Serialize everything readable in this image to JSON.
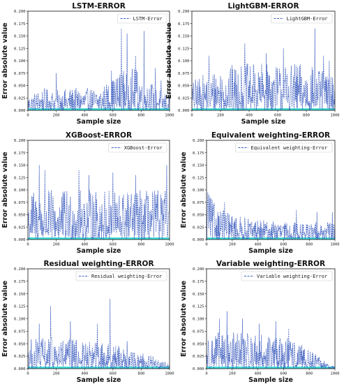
{
  "chart_data": [
    {
      "type": "line",
      "title": "LSTM-ERROR",
      "xlabel": "Sample size",
      "ylabel": "Error absolute value",
      "xlim": [
        0,
        1000
      ],
      "ylim": [
        0,
        0.2
      ],
      "xticks": [
        "0",
        "200",
        "400",
        "600",
        "800",
        "1000"
      ],
      "yticks": [
        "0.000",
        "0.025",
        "0.050",
        "0.075",
        "0.100",
        "0.125",
        "0.150",
        "0.175",
        "0.200"
      ],
      "legend": "top-right",
      "series": [
        {
          "name": "LSTM-Error",
          "style": "dashed",
          "color": "#3f5fbf",
          "profile": [
            [
              0,
              0.03
            ],
            [
              100,
              0.045
            ],
            [
              200,
              0.04
            ],
            [
              300,
              0.045
            ],
            [
              400,
              0.045
            ],
            [
              500,
              0.045
            ],
            [
              600,
              0.065
            ],
            [
              700,
              0.09
            ],
            [
              800,
              0.08
            ],
            [
              900,
              0.05
            ],
            [
              1000,
              0.03
            ]
          ],
          "peaks": [
            [
              200,
              0.075
            ],
            [
              590,
              0.08
            ],
            [
              660,
              0.165
            ],
            [
              700,
              0.155
            ],
            [
              760,
              0.11
            ],
            [
              820,
              0.16
            ],
            [
              900,
              0.085
            ],
            [
              940,
              0.06
            ]
          ]
        }
      ]
    },
    {
      "type": "line",
      "title": "LightGBM-ERROR",
      "xlabel": "Sample size",
      "ylabel": "Error absolute value",
      "xlim": [
        0,
        1000
      ],
      "ylim": [
        0,
        0.2
      ],
      "xticks": [
        "0",
        "200",
        "400",
        "600",
        "800",
        "1000"
      ],
      "yticks": [
        "0.000",
        "0.025",
        "0.050",
        "0.075",
        "0.100",
        "0.125",
        "0.150",
        "0.175",
        "0.200"
      ],
      "legend": "top-right",
      "series": [
        {
          "name": "LightGBM-Error",
          "style": "dashed",
          "color": "#3f5fbf",
          "profile": [
            [
              0,
              0.06
            ],
            [
              200,
              0.09
            ],
            [
              400,
              0.095
            ],
            [
              600,
              0.095
            ],
            [
              800,
              0.095
            ],
            [
              1000,
              0.07
            ]
          ],
          "peaks": [
            [
              120,
              0.11
            ],
            [
              370,
              0.135
            ],
            [
              520,
              0.115
            ],
            [
              640,
              0.125
            ],
            [
              860,
              0.165
            ],
            [
              920,
              0.11
            ],
            [
              960,
              0.1
            ]
          ]
        }
      ]
    },
    {
      "type": "line",
      "title": "XGBoost-ERROR",
      "xlabel": "Sample size",
      "ylabel": "Error absolute value",
      "xlim": [
        0,
        1000
      ],
      "ylim": [
        0,
        0.2
      ],
      "xticks": [
        "0",
        "200",
        "400",
        "600",
        "800",
        "1000"
      ],
      "yticks": [
        "0.000",
        "0.025",
        "0.050",
        "0.075",
        "0.100",
        "0.125",
        "0.150",
        "0.175",
        "0.200"
      ],
      "legend": "top-right",
      "series": [
        {
          "name": "XGBoost-Error",
          "style": "dashed",
          "color": "#3f5fbf",
          "profile": [
            [
              0,
              0.1
            ],
            [
              200,
              0.1
            ],
            [
              400,
              0.1
            ],
            [
              600,
              0.1
            ],
            [
              800,
              0.1
            ],
            [
              1000,
              0.1
            ]
          ],
          "peaks": [
            [
              80,
              0.15
            ],
            [
              120,
              0.14
            ],
            [
              360,
              0.14
            ],
            [
              430,
              0.13
            ],
            [
              600,
              0.135
            ],
            [
              760,
              0.13
            ],
            [
              980,
              0.15
            ]
          ]
        }
      ]
    },
    {
      "type": "line",
      "title": "Equivalent weighting-ERROR",
      "xlabel": "Sample size",
      "ylabel": "Error absolute value",
      "xlim": [
        0,
        1000
      ],
      "ylim": [
        0,
        0.2
      ],
      "xticks": [
        "0",
        "200",
        "400",
        "600",
        "800",
        "1000"
      ],
      "yticks": [
        "0.000",
        "0.025",
        "0.050",
        "0.075",
        "0.100",
        "0.125",
        "0.150",
        "0.175",
        "0.200"
      ],
      "legend": "top-right",
      "series": [
        {
          "name": "Equivalent weighting-Error",
          "style": "dashed",
          "color": "#3f5fbf",
          "profile": [
            [
              0,
              0.095
            ],
            [
              100,
              0.065
            ],
            [
              200,
              0.05
            ],
            [
              400,
              0.04
            ],
            [
              600,
              0.035
            ],
            [
              800,
              0.035
            ],
            [
              1000,
              0.035
            ]
          ],
          "peaks": [
            [
              10,
              0.095
            ],
            [
              20,
              0.09
            ],
            [
              140,
              0.075
            ],
            [
              700,
              0.06
            ],
            [
              860,
              0.055
            ],
            [
              980,
              0.055
            ]
          ]
        }
      ]
    },
    {
      "type": "line",
      "title": "Residual weighting-ERROR",
      "xlabel": "Sample size",
      "ylabel": "Error absolute value",
      "xlim": [
        0,
        1000
      ],
      "ylim": [
        0,
        0.2
      ],
      "xticks": [
        "0",
        "200",
        "400",
        "600",
        "800",
        "1000"
      ],
      "yticks": [
        "0.000",
        "0.025",
        "0.050",
        "0.075",
        "0.100",
        "0.125",
        "0.150",
        "0.175",
        "0.200"
      ],
      "legend": "top-right",
      "series": [
        {
          "name": "Residual weighting-Error",
          "style": "dashed",
          "color": "#3f5fbf",
          "profile": [
            [
              0,
              0.06
            ],
            [
              200,
              0.065
            ],
            [
              400,
              0.055
            ],
            [
              600,
              0.05
            ],
            [
              800,
              0.035
            ],
            [
              900,
              0.025
            ],
            [
              1000,
              0.01
            ]
          ],
          "peaks": [
            [
              80,
              0.09
            ],
            [
              160,
              0.125
            ],
            [
              300,
              0.095
            ],
            [
              490,
              0.09
            ],
            [
              580,
              0.14
            ],
            [
              700,
              0.055
            ]
          ]
        }
      ]
    },
    {
      "type": "line",
      "title": "Variable weighting-ERROR",
      "xlabel": "Sample size",
      "ylabel": "Error absolute value",
      "xlim": [
        0,
        1000
      ],
      "ylim": [
        0,
        0.2
      ],
      "xticks": [
        "0",
        "200",
        "400",
        "600",
        "800",
        "1000"
      ],
      "yticks": [
        "0.000",
        "0.025",
        "0.050",
        "0.075",
        "0.100",
        "0.125",
        "0.150",
        "0.175",
        "0.200"
      ],
      "legend": "top-right",
      "series": [
        {
          "name": "Variable weighting-Error",
          "style": "dashed",
          "color": "#3f5fbf",
          "profile": [
            [
              0,
              0.07
            ],
            [
              200,
              0.075
            ],
            [
              400,
              0.07
            ],
            [
              600,
              0.065
            ],
            [
              800,
              0.04
            ],
            [
              900,
              0.02
            ],
            [
              1000,
              0.005
            ]
          ],
          "peaks": [
            [
              100,
              0.1
            ],
            [
              160,
              0.115
            ],
            [
              280,
              0.1
            ],
            [
              410,
              0.09
            ],
            [
              540,
              0.095
            ],
            [
              640,
              0.08
            ]
          ]
        }
      ]
    }
  ],
  "colors": {
    "series": "#3f5fbf",
    "fill": "#3ad9d3",
    "axis": "#111111"
  }
}
